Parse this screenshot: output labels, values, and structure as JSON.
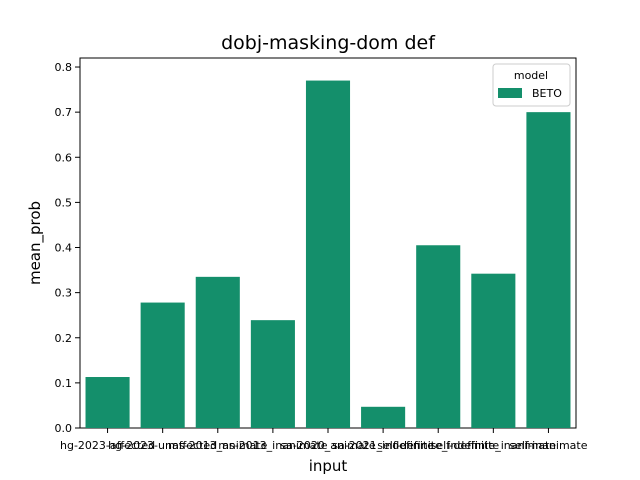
{
  "chart_data": {
    "type": "bar",
    "title": "dobj-masking-dom def",
    "xlabel": "input",
    "ylabel": "mean_prob",
    "ylim": [
      0,
      0.82
    ],
    "yticks": [
      "0.0",
      "0.1",
      "0.2",
      "0.3",
      "0.4",
      "0.5",
      "0.6",
      "0.7",
      "0.8"
    ],
    "grid": false,
    "legend": {
      "title": "model",
      "position": "top-right"
    },
    "categories": [
      "hg-2023-affected",
      "hg-2023-unaffected",
      "ms-2013_animate",
      "ms-2013_inanimate",
      "sa-2020_animate",
      "sa-2021_indefinite",
      "self-definite_indefinite",
      "self-definite_inanimate",
      "self-inanimate"
    ],
    "series": [
      {
        "name": "BETO",
        "color": "#148f6b",
        "values": [
          0.113,
          0.278,
          0.335,
          0.239,
          0.77,
          0.047,
          0.405,
          0.342,
          0.7
        ]
      }
    ]
  }
}
